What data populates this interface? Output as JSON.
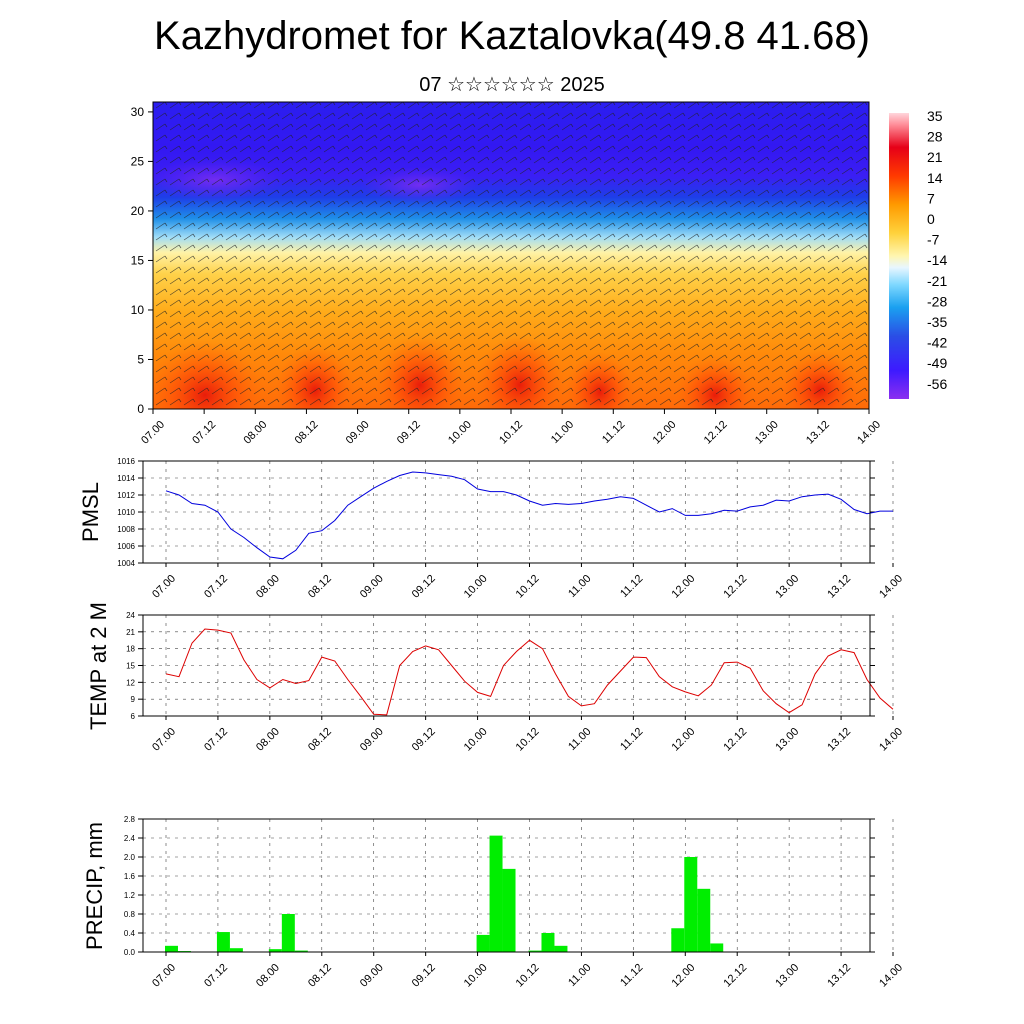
{
  "title": "Kazhydromet for Kaztalovka(49.8 41.68)",
  "subtitle": "07 ☆☆☆☆☆☆ 2025",
  "time_labels": [
    "07.00",
    "07.12",
    "08.00",
    "08.12",
    "09.00",
    "09.12",
    "10.00",
    "10.12",
    "11.00",
    "11.12",
    "12.00",
    "12.12",
    "13.00",
    "13.12",
    "14.00"
  ],
  "colors": {
    "pmsl_line": "#0000dd",
    "temp_line": "#dd0000",
    "precip_bar": "#00ee00"
  },
  "chart_data": [
    {
      "type": "heatmap",
      "title": "",
      "ylim": [
        0,
        31
      ],
      "y_ticks": [
        0,
        5,
        10,
        15,
        20,
        25,
        30
      ],
      "colorbar_labels": [
        "35",
        "28",
        "21",
        "14",
        "7",
        "0",
        "-7",
        "-14",
        "-21",
        "-28",
        "-35",
        "-42",
        "-49",
        "-56"
      ],
      "colorbar_range": [
        -60,
        38
      ],
      "overlay": "wind barbs"
    },
    {
      "type": "line",
      "ylabel": "PMSL",
      "ylim": [
        1004,
        1016
      ],
      "y_ticks": [
        1004,
        1006,
        1008,
        1010,
        1012,
        1014,
        1016
      ],
      "x_hours": [
        0,
        3,
        6,
        9,
        12,
        15,
        18,
        21,
        24,
        27,
        30,
        33,
        36,
        39,
        42,
        45,
        48,
        51,
        54,
        57,
        60,
        63,
        66,
        69,
        72,
        75,
        78,
        81,
        84,
        87,
        90,
        93,
        96,
        99,
        102,
        105,
        108,
        111,
        114,
        117,
        120,
        123,
        126,
        129,
        132,
        135,
        138,
        141,
        144,
        147,
        150,
        153,
        156,
        159,
        162,
        165,
        168
      ],
      "values": [
        1012.5,
        1012.0,
        1011.0,
        1010.8,
        1010.0,
        1008.0,
        1007.0,
        1005.8,
        1004.7,
        1004.5,
        1005.5,
        1007.5,
        1007.8,
        1009.0,
        1010.8,
        1011.8,
        1012.8,
        1013.6,
        1014.3,
        1014.7,
        1014.6,
        1014.4,
        1014.2,
        1013.8,
        1012.7,
        1012.4,
        1012.4,
        1012.0,
        1011.3,
        1010.8,
        1011.0,
        1010.9,
        1011.0,
        1011.3,
        1011.5,
        1011.8,
        1011.6,
        1010.8,
        1010.0,
        1010.4,
        1009.6,
        1009.6,
        1009.8,
        1010.2,
        1010.1,
        1010.6,
        1010.8,
        1011.4,
        1011.3,
        1011.8,
        1012.0,
        1012.1,
        1011.5,
        1010.3,
        1009.8,
        1010.1,
        1010.1
      ]
    },
    {
      "type": "line",
      "ylabel": "TEMP at 2 M",
      "ylim": [
        6,
        24
      ],
      "y_ticks": [
        6,
        9,
        12,
        15,
        18,
        21,
        24
      ],
      "x_hours": [
        0,
        3,
        6,
        9,
        12,
        15,
        18,
        21,
        24,
        27,
        30,
        33,
        36,
        39,
        42,
        45,
        48,
        51,
        54,
        57,
        60,
        63,
        66,
        69,
        72,
        75,
        78,
        81,
        84,
        87,
        90,
        93,
        96,
        99,
        102,
        105,
        108,
        111,
        114,
        117,
        120,
        123,
        126,
        129,
        132,
        135,
        138,
        141,
        144,
        147,
        150,
        153,
        156,
        159,
        162,
        165,
        168
      ],
      "values": [
        13.5,
        13.0,
        19.0,
        21.5,
        21.3,
        20.8,
        16.0,
        12.5,
        11.0,
        12.5,
        11.8,
        12.3,
        16.5,
        15.8,
        12.5,
        9.5,
        6.3,
        6.2,
        15.0,
        17.5,
        18.5,
        17.8,
        15.0,
        12.2,
        10.2,
        9.5,
        15.0,
        17.5,
        19.5,
        18.0,
        13.5,
        9.5,
        7.8,
        8.2,
        11.5,
        14.0,
        16.5,
        16.4,
        13.0,
        11.2,
        10.3,
        9.6,
        11.5,
        15.5,
        15.6,
        14.5,
        10.5,
        8.2,
        6.6,
        8.0,
        13.5,
        16.7,
        17.8,
        17.3,
        12.5,
        9.2,
        7.2
      ]
    },
    {
      "type": "bar",
      "ylabel": "PRECIP, mm",
      "ylim": [
        0,
        2.8
      ],
      "y_ticks": [
        "0.0",
        "0.4",
        "0.8",
        "1.2",
        "1.6",
        "2.0",
        "2.4",
        "2.8"
      ],
      "x_hours": [
        0,
        3,
        6,
        9,
        12,
        15,
        18,
        21,
        24,
        27,
        30,
        33,
        36,
        39,
        42,
        45,
        48,
        51,
        54,
        57,
        60,
        63,
        66,
        69,
        72,
        75,
        78,
        81,
        84,
        87,
        90,
        93,
        96,
        99,
        102,
        105,
        108,
        111,
        114,
        117,
        120,
        123,
        126,
        129,
        132,
        135,
        138,
        141,
        144,
        147,
        150,
        153,
        156,
        159,
        162,
        165
      ],
      "values": [
        0.13,
        0.02,
        0,
        0,
        0.42,
        0.08,
        0,
        0,
        0.06,
        0.8,
        0.03,
        0,
        0,
        0,
        0,
        0,
        0,
        0,
        0,
        0,
        0,
        0,
        0,
        0,
        0.36,
        2.45,
        1.75,
        0,
        0.03,
        0.4,
        0.13,
        0,
        0,
        0,
        0,
        0,
        0,
        0,
        0,
        0.5,
        2.0,
        1.33,
        0.18,
        0,
        0,
        0.01,
        0,
        0,
        0,
        0,
        0,
        0,
        0,
        0,
        0,
        0
      ]
    }
  ]
}
